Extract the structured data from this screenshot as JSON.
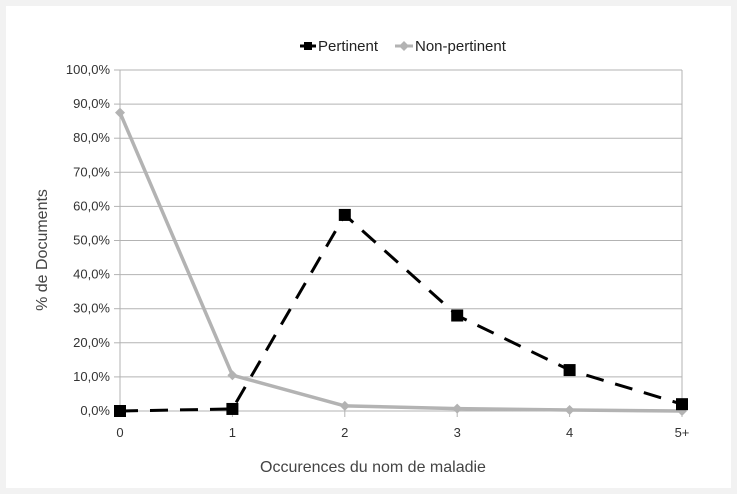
{
  "chart_data": {
    "type": "line",
    "title": "",
    "xlabel": "Occurences du nom de maladie",
    "ylabel": "% de Documents",
    "categories": [
      "0",
      "1",
      "2",
      "3",
      "4",
      "5+"
    ],
    "y_ticks": [
      "0,0%",
      "10,0%",
      "20,0%",
      "30,0%",
      "40,0%",
      "50,0%",
      "60,0%",
      "70,0%",
      "80,0%",
      "90,0%",
      "100,0%"
    ],
    "ylim": [
      0,
      100
    ],
    "grid": "horizontal",
    "legend_position": "top",
    "series": [
      {
        "name": "Pertinent",
        "values": [
          0.0,
          0.6,
          57.5,
          28.0,
          12.0,
          2.0
        ],
        "color": "#000000",
        "line_style": "dashed",
        "marker": "square"
      },
      {
        "name": "Non-pertinent",
        "values": [
          87.5,
          10.5,
          1.5,
          0.7,
          0.3,
          0.0
        ],
        "color": "#b3b3b3",
        "line_style": "solid",
        "marker": "diamond"
      }
    ]
  }
}
